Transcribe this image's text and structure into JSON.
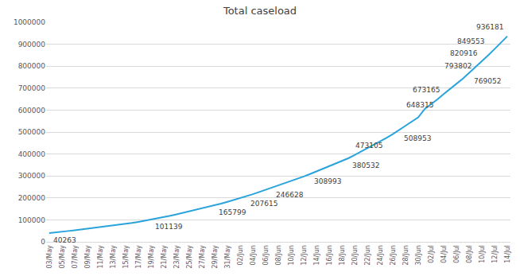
{
  "chart_data": {
    "type": "line",
    "title": "Total caseload",
    "color": "#29a3dc",
    "grid": true,
    "data_labels": true,
    "ylim": [
      0,
      1000000
    ],
    "yticks": [
      0,
      100000,
      200000,
      300000,
      400000,
      500000,
      600000,
      700000,
      800000,
      900000,
      1000000
    ],
    "categories": [
      "03/May",
      null,
      "05/May",
      null,
      "07/May",
      null,
      "09/May",
      null,
      "11/May",
      null,
      "13/May",
      null,
      "15/May",
      null,
      "17/May",
      null,
      "19/May",
      null,
      "21/May",
      null,
      "23/May",
      null,
      "25/May",
      null,
      "27/May",
      null,
      "29/May",
      null,
      "31/May",
      null,
      "02/Jun",
      null,
      "04/Jun",
      null,
      "06/Jun",
      null,
      "08/Jun",
      null,
      "10/Jun",
      null,
      "12/Jun",
      null,
      "14/Jun",
      null,
      "16/Jun",
      null,
      "18/Jun",
      null,
      "20/Jun",
      null,
      "22/Jun",
      null,
      "24/Jun",
      null,
      "26/Jun",
      null,
      "28/Jun",
      null,
      "30/Jun",
      null,
      "02/Jul",
      null,
      "04/Jul",
      null,
      "06/Jul",
      null,
      "08/Jul",
      null,
      "10/Jul",
      null,
      "12/Jul",
      null,
      "14/Jul"
    ],
    "values": [
      40263,
      42533,
      46433,
      49391,
      52952,
      56342,
      59662,
      62939,
      67152,
      70756,
      74281,
      78003,
      81970,
      85940,
      90927,
      96169,
      101139,
      106750,
      112359,
      118447,
      125101,
      131868,
      138845,
      145380,
      151767,
      158333,
      165799,
      173763,
      182143,
      190535,
      198706,
      207615,
      216919,
      226770,
      236657,
      246628,
      256611,
      266598,
      276583,
      286579,
      297535,
      308993,
      320922,
      332424,
      343091,
      354065,
      366946,
      380532,
      395048,
      410461,
      425282,
      440215,
      456183,
      473105,
      490401,
      508953,
      528859,
      548318,
      566840,
      604641,
      625544,
      648315,
      673165,
      697413,
      719665,
      742417,
      769052,
      793802,
      820916,
      849553,
      878254,
      906752,
      936181
    ],
    "value_labels": [
      "40263",
      null,
      null,
      null,
      null,
      null,
      null,
      null,
      null,
      null,
      null,
      null,
      null,
      null,
      null,
      null,
      "101139",
      null,
      null,
      null,
      null,
      null,
      null,
      null,
      null,
      null,
      "165799",
      null,
      null,
      null,
      null,
      "207615",
      null,
      null,
      null,
      "246628",
      null,
      null,
      null,
      null,
      null,
      "308993",
      null,
      null,
      null,
      null,
      null,
      "380532",
      null,
      null,
      null,
      null,
      null,
      "473105",
      null,
      "508953",
      null,
      null,
      null,
      null,
      null,
      "648315",
      "673165",
      null,
      null,
      null,
      "769052",
      "793802",
      "820916",
      "849553",
      null,
      null,
      "936181"
    ]
  }
}
